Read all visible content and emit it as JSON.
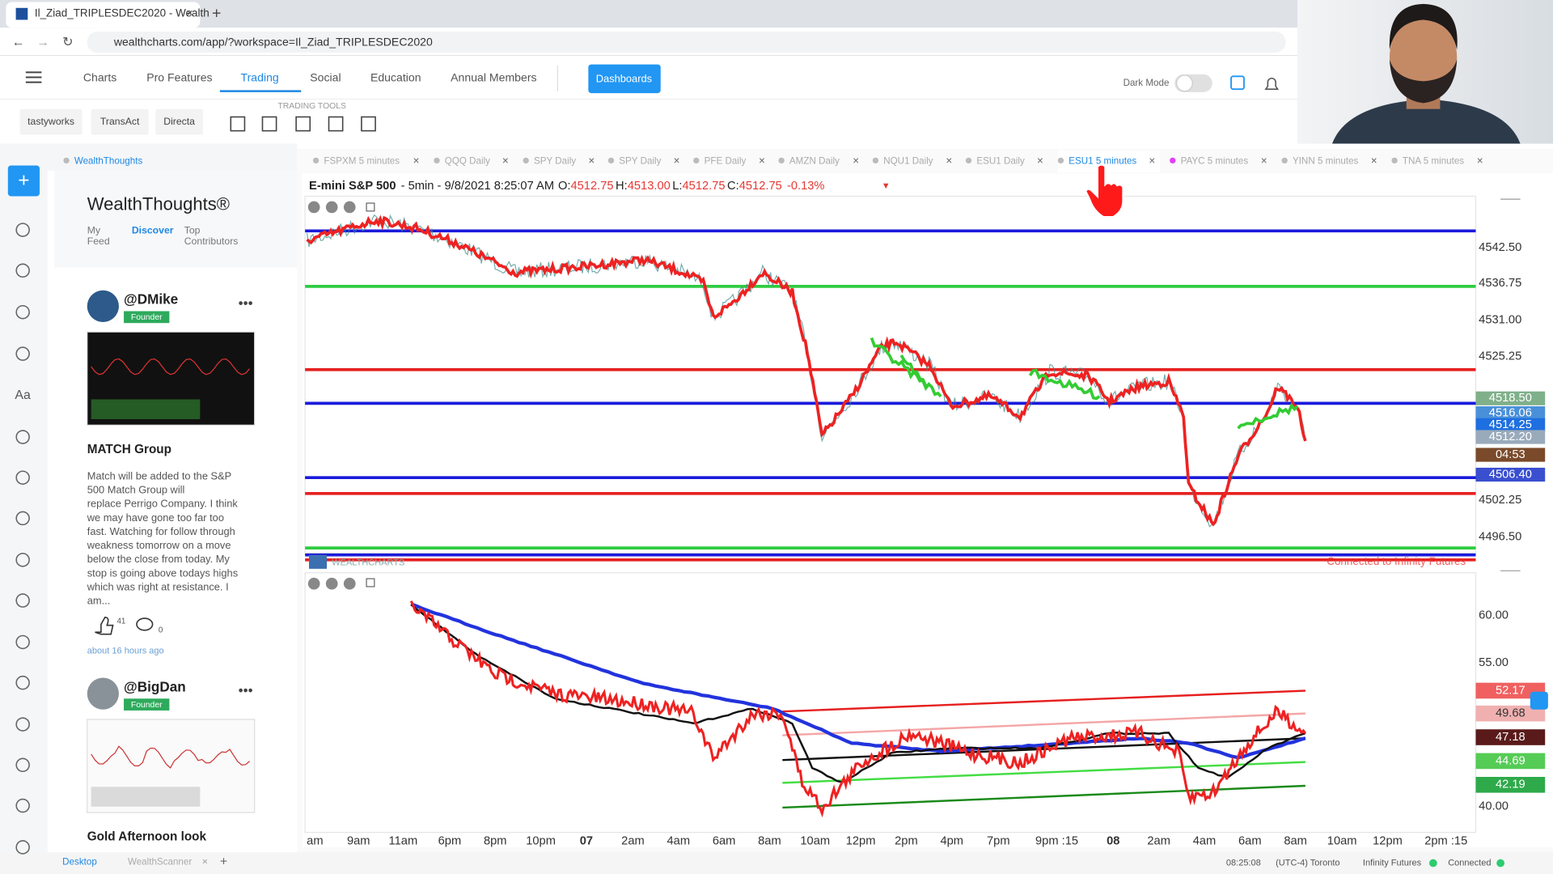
{
  "browser": {
    "tab_title": "Il_Ziad_TRIPLESDEC2020 - Wealth",
    "url": "wealthcharts.com/app/?workspace=Il_Ziad_TRIPLESDEC2020"
  },
  "nav": {
    "items": [
      "Charts",
      "Pro Features",
      "Trading",
      "Social",
      "Education",
      "Annual Members"
    ],
    "button": "Dashboards",
    "dark_mode": "Dark Mode"
  },
  "toolbar": {
    "brokers": [
      "tastyworks",
      "TransAct",
      "Directa"
    ],
    "label": "TRADING TOOLS"
  },
  "sidebar": {
    "tab": "WealthThoughts",
    "title": "WealthThoughts®",
    "filters": [
      [
        "My",
        "Feed"
      ],
      [
        "Discover"
      ],
      [
        "Top",
        "Contributors"
      ]
    ],
    "posts": [
      {
        "user": "@DMike",
        "badge": "Founder",
        "title": "MATCH Group",
        "body": [
          "Match will be added to the S&P",
          "500 Match Group will",
          "replace Perrigo Company. I think",
          "we may have gone too far too",
          "fast. Watching for follow through",
          "weakness tomorrow on a move",
          "below the close from today. My",
          "stop is going above todays highs",
          "which was right at resistance. I",
          "am..."
        ],
        "likes": "41",
        "comments": "0",
        "time": "about 16 hours ago"
      },
      {
        "user": "@BigDan",
        "badge": "Founder",
        "title": "Gold Afternoon look"
      }
    ]
  },
  "chart_tabs": [
    "FSPXM 5 minutes",
    "QQQ Daily",
    "SPY Daily",
    "SPY Daily",
    "PFE Daily",
    "AMZN Daily",
    "NQU1 Daily",
    "ESU1 Daily",
    "ESU1 5 minutes",
    "PAYC 5 minutes",
    "YINN 5 minutes",
    "TNA 5 minutes"
  ],
  "chart": {
    "symbol": "E-mini S&P 500",
    "info": "- 5min - 9/8/2021 8:25:07 AM",
    "ohlc": [
      {
        "label": "O:",
        "value": "4512.75"
      },
      {
        "label": "H:",
        "value": "4513.00"
      },
      {
        "label": "L:",
        "value": "4512.75"
      },
      {
        "label": "C:",
        "value": "4512.75"
      }
    ],
    "change": "-0.13%",
    "price_axis": [
      "4542.50",
      "4536.75",
      "4531.00",
      "4525.25",
      "4502.25",
      "4496.50"
    ],
    "price_badges": [
      "4518.50",
      "4516.06",
      "4514.25",
      "4512.20",
      "04:53",
      "4506.40"
    ],
    "lower_axis": [
      "60.00",
      "55.00",
      "40.00"
    ],
    "lower_badges": [
      "52.17",
      "49.68",
      "47.18",
      "44.69",
      "42.19"
    ],
    "x_axis": [
      "am",
      "9am",
      "11am",
      "6pm",
      "8pm",
      "10pm",
      "07",
      "2am",
      "4am",
      "6am",
      "8am",
      "10am",
      "12pm",
      "2pm",
      "4pm",
      "7pm",
      "9pm :15",
      "08",
      "2am",
      "4am",
      "6am",
      "8am",
      "10am",
      "12pm",
      "2pm :15"
    ],
    "status": "Connected to Infinity Futures",
    "watermark": "WEALTHCHARTS"
  },
  "footer": {
    "tabs": [
      "Desktop",
      "WealthScanner"
    ],
    "time": "08:25:08",
    "timezone": "(UTC-4) Toronto",
    "feed": "Infinity Futures",
    "connection": "Connected"
  }
}
